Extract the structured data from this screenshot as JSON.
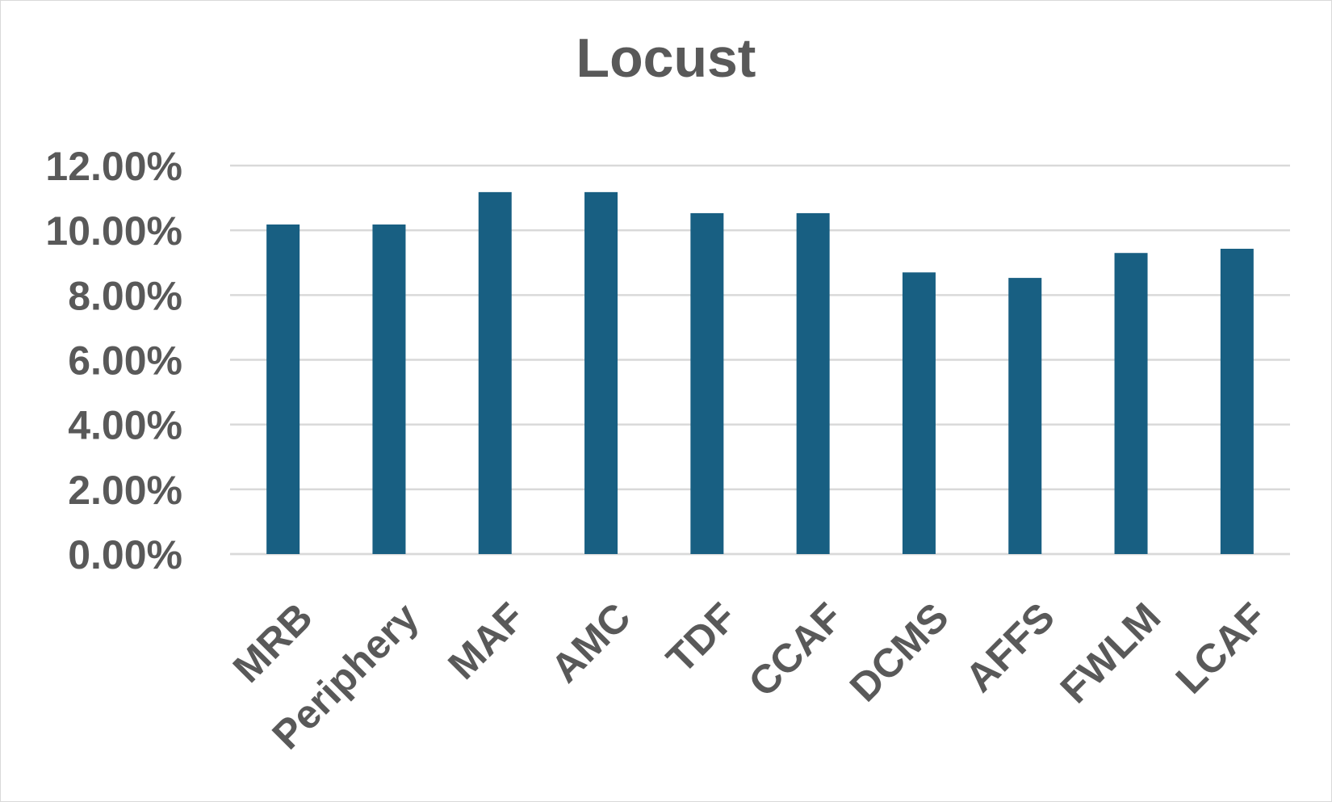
{
  "chart_data": {
    "type": "bar",
    "title": "Locust",
    "xlabel": "",
    "ylabel": "",
    "categories": [
      "MRB",
      "Periphery",
      "MAF",
      "AMC",
      "TDF",
      "CCAF",
      "DCMS",
      "AFFS",
      "FWLM",
      "LCAF"
    ],
    "values": [
      0.1018,
      0.1018,
      0.1118,
      0.1118,
      0.1053,
      0.1053,
      0.087,
      0.0853,
      0.093,
      0.0943
    ],
    "ylim": [
      0,
      0.12
    ],
    "yticks": [
      0,
      0.02,
      0.04,
      0.06,
      0.08,
      0.1,
      0.12
    ],
    "ytick_labels": [
      "0.00%",
      "2.00%",
      "4.00%",
      "6.00%",
      "8.00%",
      "10.00%",
      "12.00%"
    ],
    "grid": true,
    "legend": "none",
    "bar_color": "#185f82",
    "gridline_color": "#d9d9d9",
    "text_color": "#595959"
  }
}
